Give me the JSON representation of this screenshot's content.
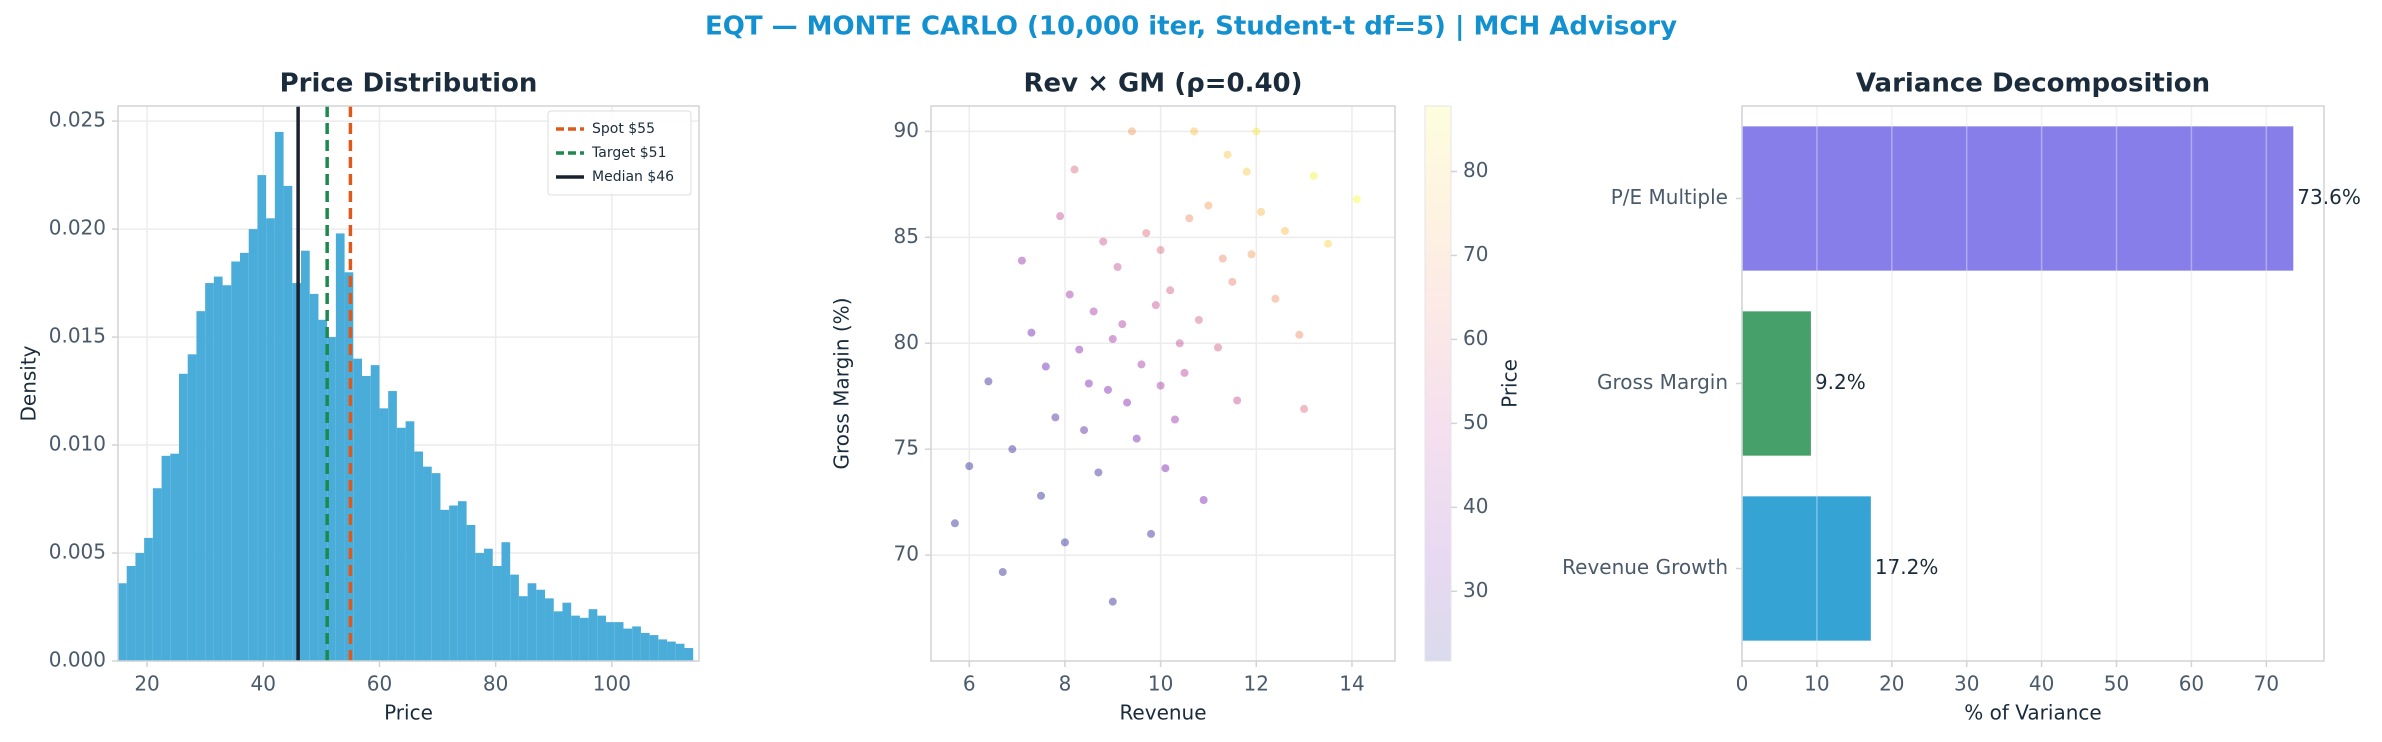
{
  "title": "EQT — MONTE CARLO (10,000 iter, Student-t df=5) | MCH Advisory",
  "chart_data": [
    {
      "type": "histogram",
      "title": "Price Distribution",
      "xlabel": "Price",
      "ylabel": "Density",
      "color": "#4aacd9",
      "grid": true,
      "bins": [
        15,
        16.5,
        18,
        19.5,
        21,
        22.5,
        24,
        25.5,
        27,
        28.5,
        30,
        31.5,
        33,
        34.5,
        36,
        37.5,
        39,
        40.5,
        42,
        43.5,
        45,
        46.5,
        48,
        49.5,
        51,
        52.5,
        54,
        55.5,
        57,
        58.5,
        60,
        61.5,
        63,
        64.5,
        66,
        67.5,
        69,
        70.5,
        72,
        73.5,
        75,
        76.5,
        78,
        79.5,
        81,
        82.5,
        84,
        85.5,
        87,
        88.5,
        90,
        91.5,
        93,
        94.5,
        96,
        97.5,
        99,
        100.5,
        102,
        103.5,
        105,
        106.5,
        108,
        109.5,
        111,
        112.5,
        114
      ],
      "values": [
        0.0036,
        0.0044,
        0.005,
        0.0057,
        0.008,
        0.0095,
        0.0096,
        0.0133,
        0.0142,
        0.0162,
        0.0175,
        0.0178,
        0.0174,
        0.0185,
        0.0189,
        0.02,
        0.0225,
        0.0205,
        0.0245,
        0.022,
        0.0175,
        0.019,
        0.017,
        0.0158,
        0.015,
        0.0198,
        0.018,
        0.014,
        0.0132,
        0.0137,
        0.0117,
        0.0125,
        0.0108,
        0.0111,
        0.0097,
        0.009,
        0.0087,
        0.007,
        0.0072,
        0.0074,
        0.0063,
        0.005,
        0.0052,
        0.0044,
        0.0055,
        0.004,
        0.003,
        0.0036,
        0.0033,
        0.0029,
        0.0023,
        0.0027,
        0.0021,
        0.002,
        0.0024,
        0.0021,
        0.0018,
        0.0018,
        0.0015,
        0.0016,
        0.0013,
        0.0012,
        0.001,
        0.0009,
        0.0008,
        0.0006
      ],
      "xlim": [
        15,
        115
      ],
      "xticks": [
        20,
        40,
        60,
        80,
        100
      ],
      "ylim": [
        0,
        0.0257
      ],
      "yticks": [
        {
          "value": 0,
          "label": "0.000"
        },
        0.005,
        {
          "value": 0.01,
          "label": "0.010"
        },
        0.015,
        {
          "value": 0.02,
          "label": "0.020"
        },
        0.025
      ],
      "vlines": [
        {
          "name": "Spot $55",
          "value": 55,
          "color": "#e0581a",
          "dashed": true
        },
        {
          "name": "Target $51",
          "value": 51,
          "color": "#1b8a4c",
          "dashed": true
        },
        {
          "name": "Median $46",
          "value": 46,
          "color": "#1a2230",
          "dashed": false
        }
      ],
      "legend": "upper right"
    },
    {
      "type": "scatter",
      "title": "Rev × GM (ρ=0.40)",
      "xlabel": "Revenue",
      "ylabel": "Gross Margin (%)",
      "colormap": "plasma",
      "colorbar_label": "Price",
      "grid": true,
      "x": [
        9.0,
        8.5,
        10.2,
        11.3,
        7.8,
        9.6,
        8.1,
        10.8,
        12.1,
        6.9,
        9.3,
        10.0,
        11.8,
        8.7,
        7.3,
        9.9,
        10.5,
        12.6,
        8.3,
        9.1,
        11.0,
        13.2,
        7.5,
        10.3,
        8.9,
        9.7,
        11.5,
        6.4,
        12.0,
        10.7,
        9.4,
        8.0,
        10.1,
        11.2,
        13.5,
        7.1,
        9.2,
        8.6,
        10.4,
        11.6,
        12.4,
        6.0,
        5.7,
        7.9,
        9.8,
        10.9,
        8.4,
        11.9,
        14.1,
        12.9,
        7.6,
        9.5,
        10.6,
        8.8,
        13.0,
        6.7,
        9.0,
        11.4,
        8.2,
        10.0
      ],
      "values": [
        80.2,
        78.1,
        82.5,
        84.0,
        76.5,
        79.0,
        82.3,
        81.1,
        86.2,
        75.0,
        77.2,
        84.4,
        88.1,
        73.9,
        80.5,
        81.8,
        78.6,
        85.3,
        79.7,
        83.6,
        86.5,
        87.9,
        72.8,
        76.4,
        77.8,
        85.2,
        82.9,
        78.2,
        90.0,
        90.0,
        90.0,
        70.6,
        74.1,
        79.8,
        84.7,
        83.9,
        80.9,
        81.5,
        80.0,
        77.3,
        82.1,
        74.2,
        71.5,
        86.0,
        71.0,
        72.6,
        75.9,
        84.2,
        86.8,
        80.4,
        78.9,
        75.5,
        85.9,
        84.8,
        76.9,
        69.2,
        67.8,
        88.9,
        88.2,
        78.0
      ],
      "color_values": [
        42.5,
        34.3,
        55.5,
        65.8,
        26.1,
        43.1,
        42.4,
        55.6,
        76.1,
        24,
        36.8,
        59,
        79.1,
        24.9,
        33.1,
        51.9,
        47.5,
        76.9,
        37.1,
        51.6,
        70.3,
        86.9,
        22,
        40.8,
        35.9,
        59.2,
        64.3,
        23,
        85,
        77.2,
        69.4,
        22,
        33.9,
        54.7,
        80.8,
        40.4,
        45.5,
        43.4,
        50.4,
        50.9,
        67.7,
        22,
        22,
        50.4,
        24.3,
        34.9,
        28.2,
        69.9,
        88,
        66.4,
        30.9,
        33.8,
        66.4,
        52.8,
        58.3,
        22,
        22,
        78.7,
        57.7,
        43
      ],
      "xlim": [
        5.2,
        14.9
      ],
      "xticks": [
        6,
        8,
        10,
        12,
        14
      ],
      "ylim": [
        65,
        91.2
      ],
      "yticks": [
        70,
        75,
        80,
        85,
        90
      ],
      "clim": [
        21.7,
        87.8
      ],
      "cticks": [
        30,
        40,
        50,
        60,
        70,
        80
      ]
    },
    {
      "type": "barh",
      "title": "Variance Decomposition",
      "xlabel": "% of Variance",
      "grid": true,
      "categories": [
        "P/E Multiple",
        "Gross Margin",
        "Revenue Growth"
      ],
      "values": [
        73.6,
        9.2,
        17.2
      ],
      "value_labels": [
        "73.6%",
        "9.2%",
        "17.2%"
      ],
      "colors": [
        "#877ee9",
        "#46a06a",
        "#35a3d4"
      ],
      "xlim": [
        0,
        77.7
      ],
      "xticks": [
        0,
        10,
        20,
        30,
        40,
        50,
        60,
        70
      ]
    }
  ]
}
